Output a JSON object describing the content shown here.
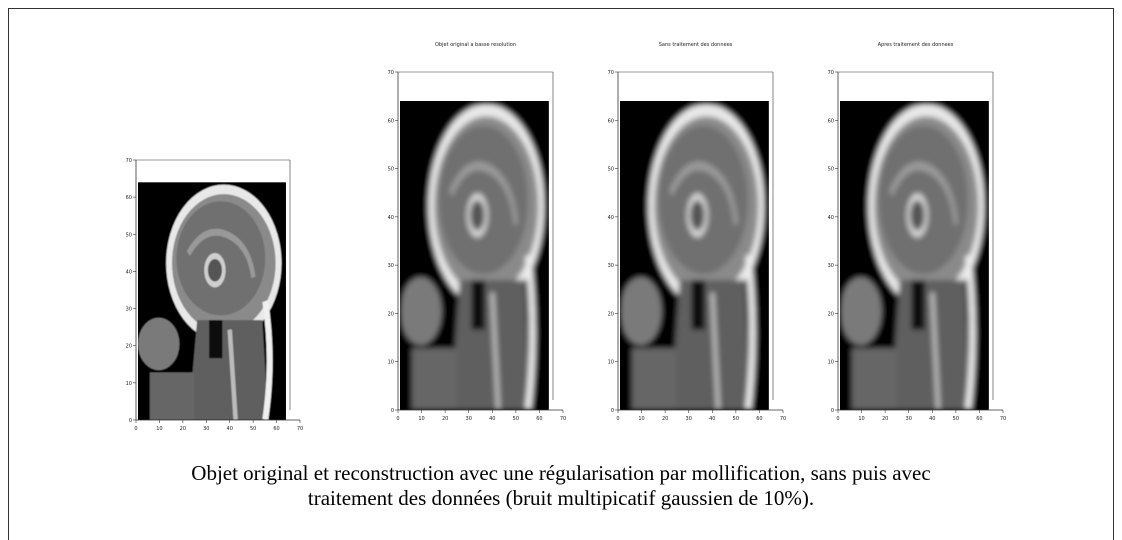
{
  "panels": [
    {
      "xticks": [
        0,
        10,
        20,
        30,
        40,
        50,
        60,
        70
      ],
      "yticks": [
        0,
        10,
        20,
        30,
        40,
        50,
        60,
        70
      ]
    },
    {
      "title": "Objet original a basse resolution",
      "xticks": [
        0,
        10,
        20,
        30,
        40,
        50,
        60,
        70
      ],
      "yticks": [
        0,
        10,
        20,
        30,
        40,
        50,
        60,
        70
      ]
    },
    {
      "title": "Sans traitement des donnees",
      "xticks": [
        0,
        10,
        20,
        30,
        40,
        50,
        60,
        70
      ],
      "yticks": [
        0,
        10,
        20,
        30,
        40,
        50,
        60,
        70
      ]
    },
    {
      "title": "Apres traitement des donnees",
      "xticks": [
        0,
        10,
        20,
        30,
        40,
        50,
        60,
        70
      ],
      "yticks": [
        0,
        10,
        20,
        30,
        40,
        50,
        60,
        70
      ]
    }
  ],
  "caption": [
    "Objet original et reconstruction avec une régularisation par mollification, sans puis avec",
    "traitement des données (bruit multipicatif gaussien de 10%)."
  ]
}
